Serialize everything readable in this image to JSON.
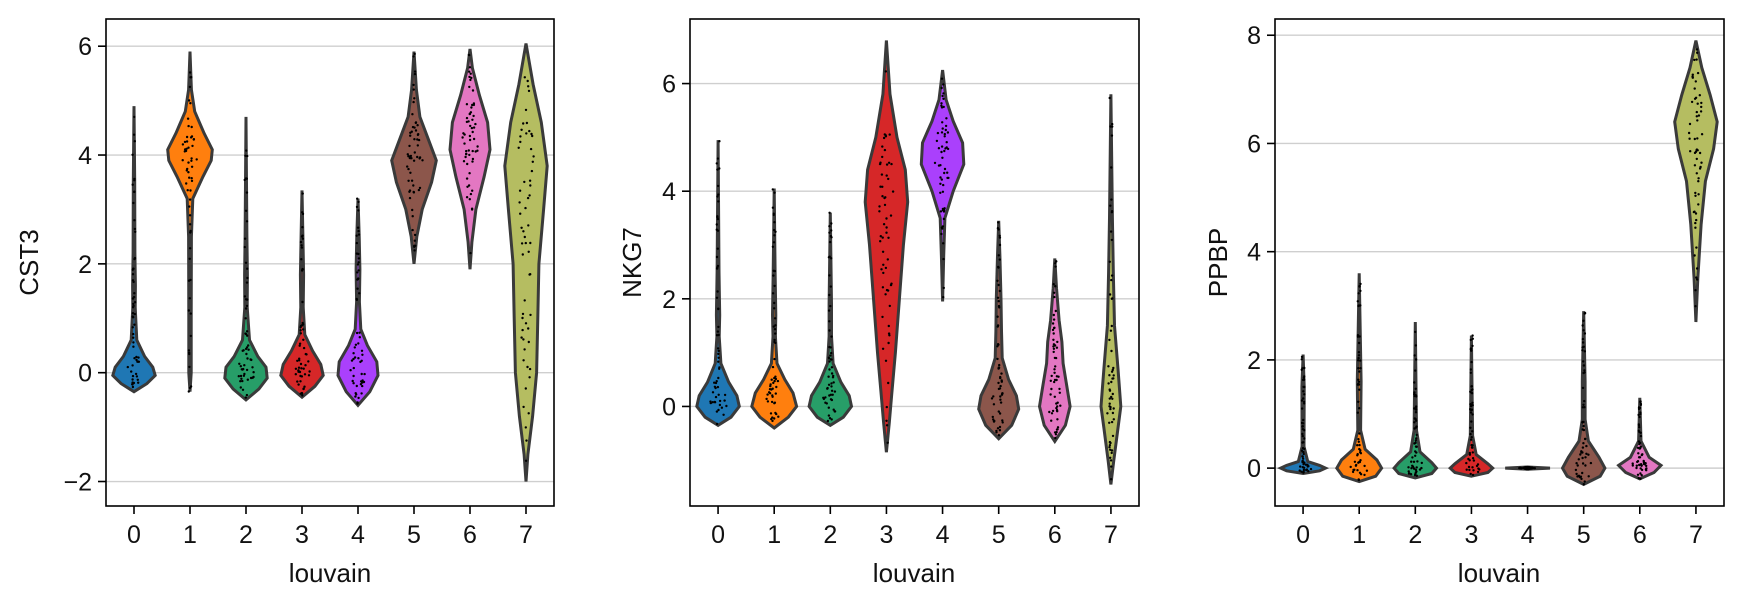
{
  "chart_data": [
    {
      "type": "violin",
      "xlabel": "louvain",
      "ylabel": "CST3",
      "categories": [
        "0",
        "1",
        "2",
        "3",
        "4",
        "5",
        "6",
        "7"
      ],
      "colors": [
        "#1f77b4",
        "#ff7f0e",
        "#279e68",
        "#d62728",
        "#aa40fc",
        "#8c564b",
        "#e377c2",
        "#b5bd61"
      ],
      "ylim": [
        -2.45,
        6.5
      ],
      "yticks": [
        -2,
        0,
        2,
        4,
        6
      ],
      "ytick_labels": [
        "−2",
        "0",
        "2",
        "4",
        "6"
      ],
      "grid": "horizontal",
      "violins": [
        {
          "min": -0.35,
          "max": 4.9,
          "shape": [
            [
              -0.35,
              0
            ],
            [
              -0.2,
              0.55
            ],
            [
              -0.05,
              0.9
            ],
            [
              0.1,
              0.8
            ],
            [
              0.3,
              0.45
            ],
            [
              0.6,
              0.12
            ],
            [
              1.2,
              0.05
            ],
            [
              1.6,
              0.06
            ],
            [
              2.2,
              0.04
            ],
            [
              3.5,
              0.03
            ],
            [
              4.9,
              0
            ]
          ]
        },
        {
          "min": -0.35,
          "max": 5.9,
          "shape": [
            [
              -0.35,
              0
            ],
            [
              0,
              0.05
            ],
            [
              1,
              0.05
            ],
            [
              2.5,
              0.06
            ],
            [
              3.2,
              0.12
            ],
            [
              3.6,
              0.55
            ],
            [
              3.9,
              0.9
            ],
            [
              4.1,
              0.95
            ],
            [
              4.4,
              0.6
            ],
            [
              4.8,
              0.2
            ],
            [
              5.2,
              0.06
            ],
            [
              5.9,
              0
            ]
          ]
        },
        {
          "min": -0.5,
          "max": 4.7,
          "shape": [
            [
              -0.5,
              0
            ],
            [
              -0.3,
              0.55
            ],
            [
              -0.1,
              0.9
            ],
            [
              0.1,
              0.85
            ],
            [
              0.3,
              0.5
            ],
            [
              0.6,
              0.15
            ],
            [
              1.2,
              0.05
            ],
            [
              1.8,
              0.06
            ],
            [
              2.5,
              0.04
            ],
            [
              4.7,
              0
            ]
          ]
        },
        {
          "min": -0.45,
          "max": 3.35,
          "shape": [
            [
              -0.45,
              0
            ],
            [
              -0.25,
              0.55
            ],
            [
              -0.05,
              0.9
            ],
            [
              0.15,
              0.8
            ],
            [
              0.4,
              0.45
            ],
            [
              0.7,
              0.12
            ],
            [
              1.2,
              0.05
            ],
            [
              1.8,
              0.07
            ],
            [
              2.5,
              0.04
            ],
            [
              3.35,
              0
            ]
          ]
        },
        {
          "min": -0.6,
          "max": 3.2,
          "shape": [
            [
              -0.6,
              0
            ],
            [
              -0.35,
              0.5
            ],
            [
              -0.05,
              0.85
            ],
            [
              0.2,
              0.8
            ],
            [
              0.5,
              0.4
            ],
            [
              0.8,
              0.12
            ],
            [
              1.3,
              0.06
            ],
            [
              1.9,
              0.08
            ],
            [
              2.5,
              0.05
            ],
            [
              3.2,
              0
            ]
          ]
        },
        {
          "min": 2.0,
          "max": 5.9,
          "shape": [
            [
              2.0,
              0
            ],
            [
              2.5,
              0.12
            ],
            [
              3.0,
              0.35
            ],
            [
              3.5,
              0.75
            ],
            [
              3.9,
              0.95
            ],
            [
              4.3,
              0.6
            ],
            [
              4.7,
              0.25
            ],
            [
              5.2,
              0.1
            ],
            [
              5.9,
              0
            ]
          ]
        },
        {
          "min": 1.9,
          "max": 5.95,
          "shape": [
            [
              1.9,
              0
            ],
            [
              2.4,
              0.08
            ],
            [
              3.0,
              0.25
            ],
            [
              3.6,
              0.6
            ],
            [
              4.1,
              0.85
            ],
            [
              4.6,
              0.75
            ],
            [
              5.1,
              0.4
            ],
            [
              5.6,
              0.1
            ],
            [
              5.95,
              0
            ]
          ]
        },
        {
          "min": -2.0,
          "max": 6.05,
          "shape": [
            [
              -2.0,
              0
            ],
            [
              -1.5,
              0.08
            ],
            [
              -0.8,
              0.28
            ],
            [
              0.0,
              0.45
            ],
            [
              1.0,
              0.5
            ],
            [
              2.0,
              0.55
            ],
            [
              3.0,
              0.75
            ],
            [
              3.8,
              0.9
            ],
            [
              4.6,
              0.65
            ],
            [
              5.3,
              0.3
            ],
            [
              6.05,
              0
            ]
          ]
        }
      ]
    },
    {
      "type": "violin",
      "xlabel": "louvain",
      "ylabel": "NKG7",
      "categories": [
        "0",
        "1",
        "2",
        "3",
        "4",
        "5",
        "6",
        "7"
      ],
      "colors": [
        "#1f77b4",
        "#ff7f0e",
        "#279e68",
        "#d62728",
        "#aa40fc",
        "#8c564b",
        "#e377c2",
        "#b5bd61"
      ],
      "ylim": [
        -1.85,
        7.2
      ],
      "yticks": [
        0,
        2,
        4,
        6
      ],
      "ytick_labels": [
        "0",
        "2",
        "4",
        "6"
      ],
      "grid": "horizontal",
      "violins": [
        {
          "min": -0.35,
          "max": 4.95,
          "shape": [
            [
              -0.35,
              0
            ],
            [
              -0.2,
              0.55
            ],
            [
              0.0,
              0.9
            ],
            [
              0.2,
              0.8
            ],
            [
              0.45,
              0.45
            ],
            [
              0.8,
              0.12
            ],
            [
              1.3,
              0.05
            ],
            [
              1.7,
              0.07
            ],
            [
              2.5,
              0.04
            ],
            [
              4.95,
              0
            ]
          ]
        },
        {
          "min": -0.4,
          "max": 4.05,
          "shape": [
            [
              -0.4,
              0
            ],
            [
              -0.2,
              0.6
            ],
            [
              0.0,
              0.95
            ],
            [
              0.25,
              0.8
            ],
            [
              0.5,
              0.45
            ],
            [
              0.8,
              0.12
            ],
            [
              1.3,
              0.05
            ],
            [
              1.7,
              0.07
            ],
            [
              2.5,
              0.04
            ],
            [
              4.05,
              0
            ]
          ]
        },
        {
          "min": -0.35,
          "max": 3.6,
          "shape": [
            [
              -0.35,
              0
            ],
            [
              -0.2,
              0.55
            ],
            [
              0.0,
              0.9
            ],
            [
              0.2,
              0.8
            ],
            [
              0.45,
              0.45
            ],
            [
              0.8,
              0.12
            ],
            [
              1.3,
              0.05
            ],
            [
              1.9,
              0.05
            ],
            [
              3.6,
              0
            ]
          ]
        },
        {
          "min": -0.85,
          "max": 6.8,
          "shape": [
            [
              -0.85,
              0
            ],
            [
              -0.3,
              0.12
            ],
            [
              0.2,
              0.22
            ],
            [
              1.0,
              0.38
            ],
            [
              2.0,
              0.55
            ],
            [
              3.0,
              0.72
            ],
            [
              3.8,
              0.9
            ],
            [
              4.4,
              0.8
            ],
            [
              5.0,
              0.45
            ],
            [
              5.8,
              0.15
            ],
            [
              6.8,
              0
            ]
          ]
        },
        {
          "min": 1.95,
          "max": 6.25,
          "shape": [
            [
              1.95,
              0
            ],
            [
              2.8,
              0.05
            ],
            [
              3.5,
              0.1
            ],
            [
              4.0,
              0.45
            ],
            [
              4.5,
              0.9
            ],
            [
              4.9,
              0.85
            ],
            [
              5.3,
              0.45
            ],
            [
              5.7,
              0.15
            ],
            [
              6.25,
              0
            ]
          ]
        },
        {
          "min": -0.6,
          "max": 3.45,
          "shape": [
            [
              -0.6,
              0
            ],
            [
              -0.35,
              0.55
            ],
            [
              -0.05,
              0.85
            ],
            [
              0.2,
              0.75
            ],
            [
              0.5,
              0.42
            ],
            [
              0.9,
              0.15
            ],
            [
              1.4,
              0.12
            ],
            [
              2.0,
              0.1
            ],
            [
              2.8,
              0.05
            ],
            [
              3.45,
              0
            ]
          ]
        },
        {
          "min": -0.65,
          "max": 2.75,
          "shape": [
            [
              -0.65,
              0
            ],
            [
              -0.35,
              0.45
            ],
            [
              0.0,
              0.65
            ],
            [
              0.4,
              0.5
            ],
            [
              0.8,
              0.35
            ],
            [
              1.2,
              0.3
            ],
            [
              1.6,
              0.18
            ],
            [
              2.2,
              0.07
            ],
            [
              2.75,
              0
            ]
          ]
        },
        {
          "min": -1.45,
          "max": 5.8,
          "shape": [
            [
              -1.45,
              0
            ],
            [
              -1.0,
              0.12
            ],
            [
              -0.4,
              0.3
            ],
            [
              0.0,
              0.42
            ],
            [
              0.7,
              0.3
            ],
            [
              1.5,
              0.15
            ],
            [
              2.5,
              0.1
            ],
            [
              3.5,
              0.06
            ],
            [
              5.8,
              0
            ]
          ]
        }
      ]
    },
    {
      "type": "violin",
      "xlabel": "louvain",
      "ylabel": "PPBP",
      "categories": [
        "0",
        "1",
        "2",
        "3",
        "4",
        "5",
        "6",
        "7"
      ],
      "colors": [
        "#1f77b4",
        "#ff7f0e",
        "#279e68",
        "#d62728",
        "#aa40fc",
        "#8c564b",
        "#e377c2",
        "#b5bd61"
      ],
      "ylim": [
        -0.7,
        8.3
      ],
      "yticks": [
        0,
        2,
        4,
        6,
        8
      ],
      "ytick_labels": [
        "0",
        "2",
        "4",
        "6",
        "8"
      ],
      "grid": "horizontal",
      "violins": [
        {
          "min": -0.1,
          "max": 2.1,
          "shape": [
            [
              -0.1,
              0
            ],
            [
              -0.05,
              0.7
            ],
            [
              0.0,
              0.95
            ],
            [
              0.05,
              0.7
            ],
            [
              0.12,
              0.2
            ],
            [
              0.4,
              0.04
            ],
            [
              1.5,
              0.05
            ],
            [
              2.1,
              0
            ]
          ]
        },
        {
          "min": -0.25,
          "max": 3.6,
          "shape": [
            [
              -0.25,
              0
            ],
            [
              -0.15,
              0.7
            ],
            [
              0.0,
              0.95
            ],
            [
              0.15,
              0.75
            ],
            [
              0.35,
              0.25
            ],
            [
              0.7,
              0.06
            ],
            [
              1.6,
              0.08
            ],
            [
              3.6,
              0
            ]
          ]
        },
        {
          "min": -0.18,
          "max": 2.7,
          "shape": [
            [
              -0.18,
              0
            ],
            [
              -0.1,
              0.7
            ],
            [
              0.0,
              0.9
            ],
            [
              0.1,
              0.7
            ],
            [
              0.3,
              0.2
            ],
            [
              0.7,
              0.05
            ],
            [
              2.7,
              0
            ]
          ]
        },
        {
          "min": -0.15,
          "max": 2.45,
          "shape": [
            [
              -0.15,
              0
            ],
            [
              -0.08,
              0.7
            ],
            [
              0.0,
              0.9
            ],
            [
              0.08,
              0.7
            ],
            [
              0.25,
              0.2
            ],
            [
              0.6,
              0.05
            ],
            [
              2.45,
              0
            ]
          ]
        },
        {
          "min": -0.02,
          "max": 0.02,
          "shape": [
            [
              -0.02,
              0
            ],
            [
              0.0,
              0.95
            ],
            [
              0.02,
              0
            ]
          ]
        },
        {
          "min": -0.3,
          "max": 2.9,
          "shape": [
            [
              -0.3,
              0
            ],
            [
              -0.15,
              0.7
            ],
            [
              0.0,
              0.9
            ],
            [
              0.2,
              0.65
            ],
            [
              0.5,
              0.2
            ],
            [
              0.9,
              0.06
            ],
            [
              1.6,
              0.06
            ],
            [
              2.9,
              0
            ]
          ]
        },
        {
          "min": -0.2,
          "max": 1.3,
          "shape": [
            [
              -0.2,
              0
            ],
            [
              -0.08,
              0.6
            ],
            [
              0.05,
              0.9
            ],
            [
              0.2,
              0.4
            ],
            [
              0.5,
              0.05
            ],
            [
              1.3,
              0
            ]
          ]
        },
        {
          "min": 2.7,
          "max": 7.9,
          "shape": [
            [
              2.7,
              0
            ],
            [
              3.5,
              0.08
            ],
            [
              4.5,
              0.22
            ],
            [
              5.3,
              0.4
            ],
            [
              5.9,
              0.75
            ],
            [
              6.4,
              0.9
            ],
            [
              6.9,
              0.6
            ],
            [
              7.4,
              0.25
            ],
            [
              7.9,
              0
            ]
          ]
        }
      ]
    }
  ]
}
